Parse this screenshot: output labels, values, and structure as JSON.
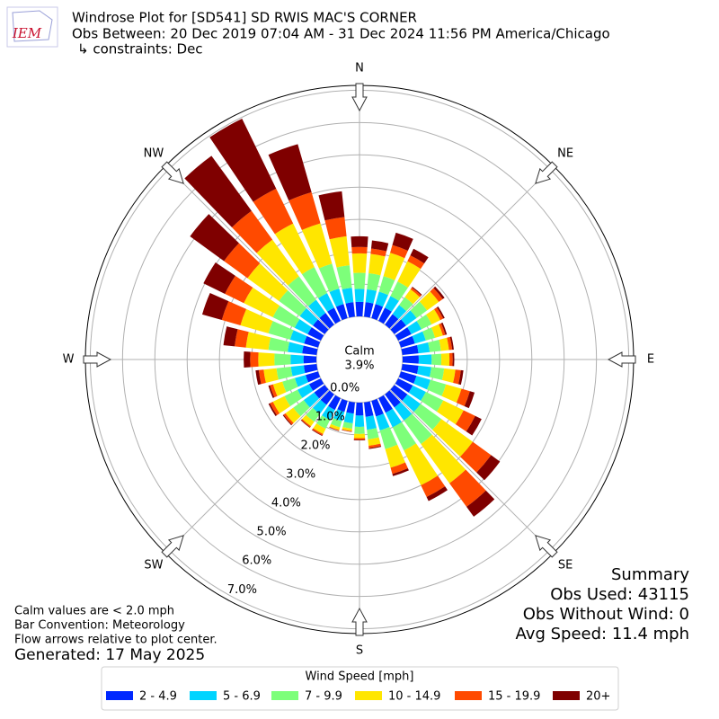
{
  "chart_data": {
    "type": "windrose",
    "logo": "IEM",
    "title": "Windrose Plot for [SD541] SD RWIS MAC'S CORNER",
    "subtitle": "Obs Between: 20 Dec 2019 07:04 AM - 31 Dec 2024 11:56 PM America/Chicago",
    "constraints": "↳ constraints: Dec",
    "calm_label": "Calm",
    "calm": 3.9,
    "calm_value_label": "3.9%",
    "x": [
      0,
      10,
      20,
      30,
      40,
      50,
      60,
      70,
      80,
      90,
      100,
      110,
      120,
      130,
      140,
      150,
      160,
      170,
      180,
      190,
      200,
      210,
      220,
      230,
      240,
      250,
      260,
      270,
      280,
      290,
      300,
      310,
      320,
      330,
      340,
      350
    ],
    "xticks": [
      {
        "value": 0,
        "label": "N"
      },
      {
        "value": 45,
        "label": "NE"
      },
      {
        "value": 90,
        "label": "E"
      },
      {
        "value": 135,
        "label": "SE"
      },
      {
        "value": 180,
        "label": "S"
      },
      {
        "value": 225,
        "label": "SW"
      },
      {
        "value": 270,
        "label": "W"
      },
      {
        "value": 315,
        "label": "NW"
      }
    ],
    "ylim": [
      0,
      7.15
    ],
    "yticks": [
      {
        "value": 0,
        "label": "0.0%"
      },
      {
        "value": 1,
        "label": "1.0%"
      },
      {
        "value": 2,
        "label": "2.0%"
      },
      {
        "value": 3,
        "label": "3.0%"
      },
      {
        "value": 4,
        "label": "4.0%"
      },
      {
        "value": 5,
        "label": "5.0%"
      },
      {
        "value": 6,
        "label": "6.0%"
      },
      {
        "value": 7,
        "label": "7.0%"
      }
    ],
    "grid": true,
    "legend_title": "Wind Speed [mph]",
    "series": [
      {
        "name": "2 - 4.9",
        "color": "#0028ff",
        "values": [
          0.45,
          0.45,
          0.45,
          0.45,
          0.4,
          0.45,
          0.45,
          0.45,
          0.5,
          0.5,
          0.5,
          0.5,
          0.5,
          0.5,
          0.5,
          0.5,
          0.5,
          0.45,
          0.4,
          0.35,
          0.35,
          0.4,
          0.4,
          0.4,
          0.4,
          0.4,
          0.4,
          0.4,
          0.45,
          0.45,
          0.45,
          0.45,
          0.45,
          0.45,
          0.45,
          0.45
        ]
      },
      {
        "name": "5 - 6.9",
        "color": "#00d4ff",
        "values": [
          0.4,
          0.4,
          0.4,
          0.4,
          0.35,
          0.4,
          0.35,
          0.35,
          0.35,
          0.4,
          0.4,
          0.45,
          0.45,
          0.5,
          0.5,
          0.5,
          0.45,
          0.4,
          0.35,
          0.3,
          0.3,
          0.35,
          0.35,
          0.4,
          0.4,
          0.35,
          0.4,
          0.4,
          0.45,
          0.45,
          0.45,
          0.5,
          0.5,
          0.5,
          0.5,
          0.45
        ]
      },
      {
        "name": "7 - 9.9",
        "color": "#7dff7a",
        "values": [
          0.5,
          0.5,
          0.5,
          0.5,
          0.3,
          0.4,
          0.35,
          0.3,
          0.35,
          0.3,
          0.4,
          0.5,
          0.6,
          0.8,
          0.9,
          0.8,
          0.6,
          0.3,
          0.22,
          0.17,
          0.2,
          0.3,
          0.3,
          0.4,
          0.45,
          0.4,
          0.45,
          0.5,
          0.6,
          0.7,
          0.75,
          0.8,
          0.9,
          0.9,
          0.8,
          0.7
        ]
      },
      {
        "name": "10 - 14.9",
        "color": "#ffe600",
        "values": [
          0.6,
          0.6,
          0.75,
          0.7,
          0.3,
          0.45,
          0.3,
          0.25,
          0.25,
          0.25,
          0.35,
          0.5,
          0.7,
          1.2,
          1.5,
          1.2,
          0.6,
          0.2,
          0.13,
          0.07,
          0.09,
          0.18,
          0.17,
          0.3,
          0.4,
          0.3,
          0.4,
          0.5,
          0.7,
          0.9,
          1.0,
          1.2,
          1.4,
          1.5,
          1.3,
          0.9
        ]
      },
      {
        "name": "15 - 19.9",
        "color": "#ff4a00",
        "values": [
          0.2,
          0.17,
          0.25,
          0.2,
          0.07,
          0.15,
          0.1,
          0.08,
          0.1,
          0.1,
          0.17,
          0.27,
          0.4,
          0.7,
          0.9,
          0.4,
          0.2,
          0.07,
          0.05,
          0.02,
          0.02,
          0.05,
          0.04,
          0.07,
          0.1,
          0.1,
          0.15,
          0.25,
          0.35,
          0.6,
          0.65,
          0.9,
          1.1,
          1.2,
          1.0,
          0.6
        ]
      },
      {
        "name": "20+",
        "color": "#7f0000",
        "values": [
          0.33,
          0.25,
          0.4,
          0.23,
          0.03,
          0.07,
          0.05,
          0.05,
          0.05,
          0.05,
          0.08,
          0.15,
          0.22,
          0.34,
          0.38,
          0.14,
          0.07,
          0.03,
          0.02,
          0.01,
          0.01,
          0.02,
          0.02,
          0.03,
          0.05,
          0.05,
          0.1,
          0.2,
          0.35,
          0.63,
          0.74,
          1.3,
          2.11,
          2.41,
          1.55,
          0.8
        ]
      }
    ],
    "summary": [
      "Summary",
      "Obs Used: 43115",
      "Obs Without Wind: 0",
      "Avg Speed: 11.4 mph"
    ],
    "notes": [
      "Calm values are < 2.0 mph",
      "Bar Convention: Meteorology",
      "Flow arrows relative to plot center."
    ],
    "generated": "Generated: 17 May 2025"
  }
}
